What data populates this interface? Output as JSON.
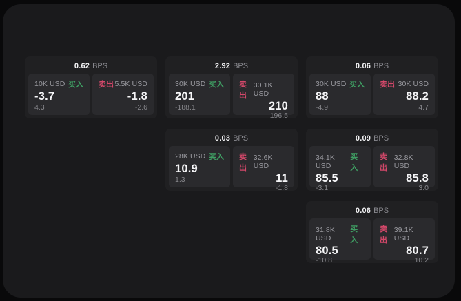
{
  "labels": {
    "bps_unit": "BPS",
    "buy": "买入",
    "sell": "卖出"
  },
  "colors": {
    "outer_background": "#09090a",
    "app_background": "#1a1a1c",
    "card_background": "#202022",
    "panel_background": "#2a2a2d",
    "buy_green": "#3f9e63",
    "sell_red": "#d4486a",
    "value_white": "#f5f5f7",
    "muted_gray": "#8a8a90"
  },
  "cards": [
    {
      "bps": "0.62",
      "buy": {
        "notional": "10K USD",
        "price": "-3.7",
        "delta": "4.3"
      },
      "sell": {
        "notional": "5.5K USD",
        "price": "-1.8",
        "delta": "-2.6"
      }
    },
    {
      "bps": "2.92",
      "buy": {
        "notional": "30K USD",
        "price": "201",
        "delta": "-188.1"
      },
      "sell": {
        "notional": "30.1K USD",
        "price": "210",
        "delta": "196.5"
      }
    },
    {
      "bps": "0.06",
      "buy": {
        "notional": "30K USD",
        "price": "88",
        "delta": "-4.9"
      },
      "sell": {
        "notional": "30K USD",
        "price": "88.2",
        "delta": "4.7"
      }
    },
    {
      "bps": "0.03",
      "buy": {
        "notional": "28K USD",
        "price": "10.9",
        "delta": "1.3"
      },
      "sell": {
        "notional": "32.6K USD",
        "price": "11",
        "delta": "-1.8"
      }
    },
    {
      "bps": "0.09",
      "buy": {
        "notional": "34.1K USD",
        "price": "85.5",
        "delta": "-3.1"
      },
      "sell": {
        "notional": "32.8K USD",
        "price": "85.8",
        "delta": "3.0"
      }
    },
    {
      "bps": "0.06",
      "buy": {
        "notional": "31.8K USD",
        "price": "80.5",
        "delta": "-10.8"
      },
      "sell": {
        "notional": "39.1K USD",
        "price": "80.7",
        "delta": "10.2"
      }
    }
  ]
}
